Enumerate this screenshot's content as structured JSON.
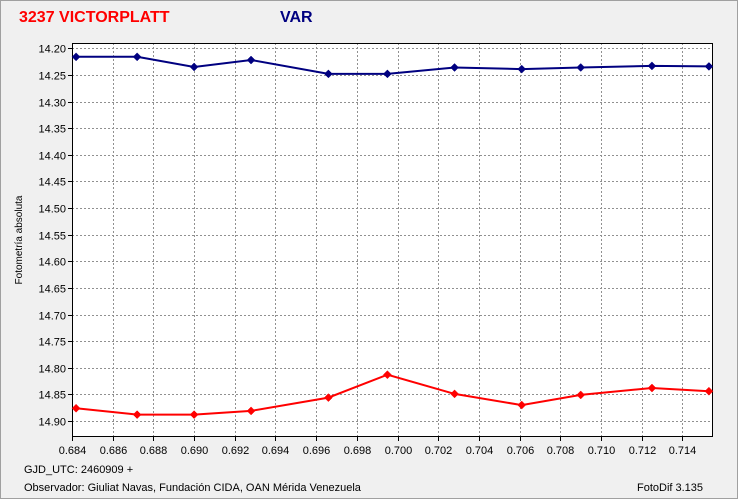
{
  "header": {
    "title": "3237 VICTORPLATT",
    "subtitle": "VAR"
  },
  "footer": {
    "gjd_label": "GJD_UTC: 2460909 +",
    "observer": "Observador: Giuliat Navas, Fundación CIDA, OAN Mérida Venezuela",
    "software": "FotoDif 3.135"
  },
  "chart_data": {
    "type": "line",
    "title": "",
    "xlabel": "",
    "ylabel": "Fotometría absoluta",
    "xlim": [
      0.684,
      0.7155
    ],
    "ylim": [
      14.19,
      14.93
    ],
    "y_inverted": true,
    "grid": true,
    "x_ticks": [
      "0.684",
      "0.686",
      "0.688",
      "0.690",
      "0.692",
      "0.694",
      "0.696",
      "0.698",
      "0.700",
      "0.702",
      "0.704",
      "0.706",
      "0.708",
      "0.710",
      "0.712",
      "0.714"
    ],
    "y_ticks": [
      "14.20",
      "14.25",
      "14.30",
      "14.35",
      "14.40",
      "14.45",
      "14.50",
      "14.55",
      "14.60",
      "14.65",
      "14.70",
      "14.75",
      "14.80",
      "14.85",
      "14.90"
    ],
    "x": [
      0.6842,
      0.6872,
      0.69,
      0.6928,
      0.6966,
      0.6995,
      0.7028,
      0.7061,
      0.709,
      0.7125,
      0.7153
    ],
    "series": [
      {
        "color": "#000080",
        "values": [
          14.216,
          14.216,
          14.235,
          14.222,
          14.248,
          14.248,
          14.236,
          14.239,
          14.236,
          14.233,
          14.234
        ]
      },
      {
        "color": "#ff0000",
        "values": [
          14.876,
          14.888,
          14.888,
          14.881,
          14.856,
          14.813,
          14.849,
          14.87,
          14.851,
          14.838,
          14.844
        ]
      }
    ]
  }
}
